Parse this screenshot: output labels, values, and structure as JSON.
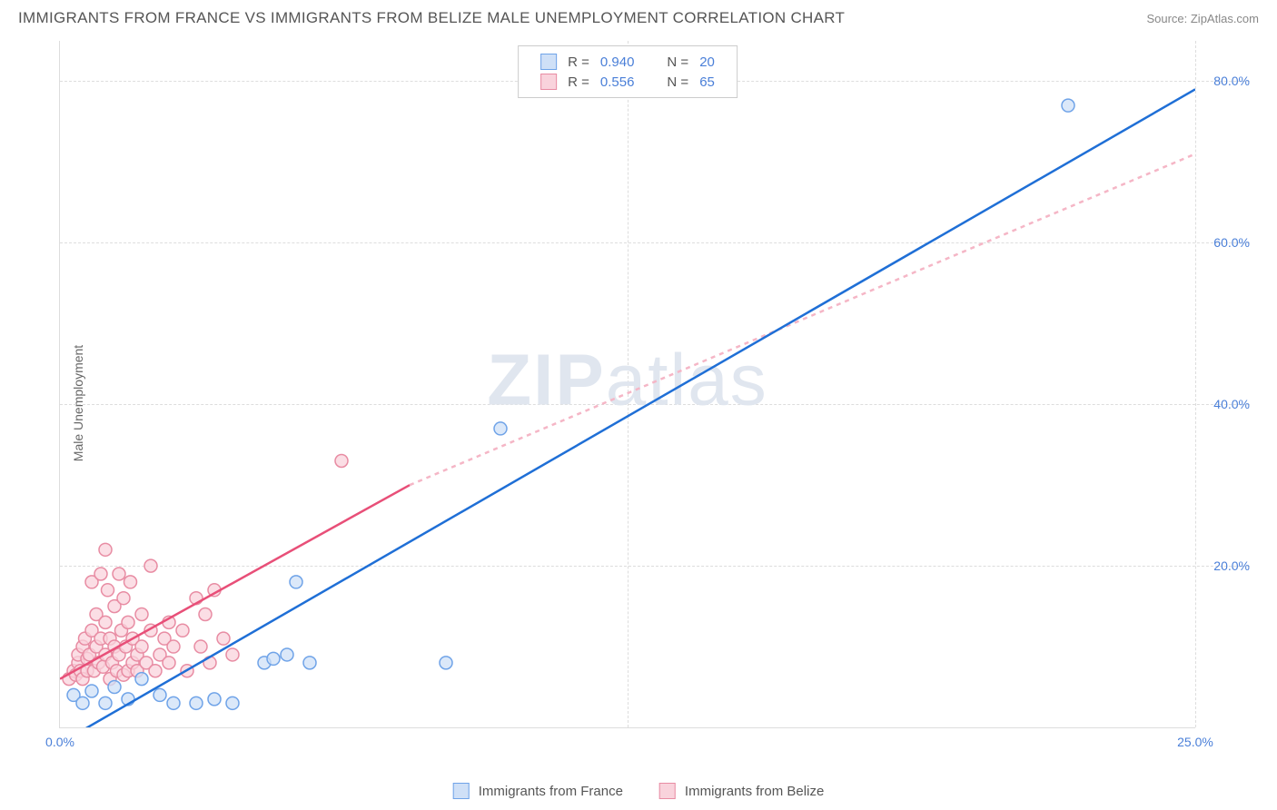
{
  "header": {
    "title": "IMMIGRANTS FROM FRANCE VS IMMIGRANTS FROM BELIZE MALE UNEMPLOYMENT CORRELATION CHART",
    "source_prefix": "Source: ",
    "source_name": "ZipAtlas.com"
  },
  "chart": {
    "type": "scatter",
    "ylabel": "Male Unemployment",
    "watermark_zip": "ZIP",
    "watermark_atlas": "atlas",
    "xlim": [
      0,
      25
    ],
    "ylim": [
      0,
      85
    ],
    "xtick_labels": [
      "0.0%",
      "25.0%"
    ],
    "xtick_positions": [
      0,
      25
    ],
    "xgrid_positions": [
      12.5,
      25
    ],
    "ytick_labels": [
      "20.0%",
      "40.0%",
      "60.0%",
      "80.0%"
    ],
    "ytick_positions": [
      20,
      40,
      60,
      80
    ],
    "background_color": "#ffffff",
    "grid_color": "#dddddd",
    "axis_label_color": "#4a7fd8",
    "marker_radius": 7,
    "marker_stroke_width": 1.5,
    "line_width": 2.5,
    "dash_pattern": "5,5",
    "series": {
      "france": {
        "label": "Immigrants from France",
        "fill": "#cfe0f7",
        "stroke": "#6fa3e8",
        "line_color": "#1f6fd6",
        "R": "0.940",
        "N": "20",
        "trend": {
          "x1": 0.3,
          "y1": -1,
          "x2": 25,
          "y2": 79
        },
        "points": [
          [
            0.3,
            4
          ],
          [
            0.5,
            3
          ],
          [
            0.7,
            4.5
          ],
          [
            1.0,
            3
          ],
          [
            1.2,
            5
          ],
          [
            1.5,
            3.5
          ],
          [
            1.8,
            6
          ],
          [
            2.2,
            4
          ],
          [
            2.5,
            3
          ],
          [
            3.0,
            3
          ],
          [
            3.4,
            3.5
          ],
          [
            3.8,
            3
          ],
          [
            4.5,
            8
          ],
          [
            4.7,
            8.5
          ],
          [
            5.0,
            9
          ],
          [
            5.2,
            18
          ],
          [
            5.5,
            8
          ],
          [
            8.5,
            8
          ],
          [
            9.7,
            37
          ],
          [
            22.2,
            77
          ]
        ]
      },
      "belize": {
        "label": "Immigrants from Belize",
        "fill": "#f9d3dc",
        "stroke": "#e88ca3",
        "line_color": "#e84f78",
        "dashed_color": "#f5b6c6",
        "R": "0.556",
        "N": "65",
        "trend": {
          "x1": 0,
          "y1": 6,
          "x2": 7.7,
          "y2": 30
        },
        "trend_dashed": {
          "x1": 7.7,
          "y1": 30,
          "x2": 25,
          "y2": 71
        },
        "points": [
          [
            0.2,
            6
          ],
          [
            0.3,
            7
          ],
          [
            0.35,
            6.5
          ],
          [
            0.4,
            8
          ],
          [
            0.4,
            9
          ],
          [
            0.45,
            7
          ],
          [
            0.5,
            6
          ],
          [
            0.5,
            10
          ],
          [
            0.55,
            11
          ],
          [
            0.6,
            7
          ],
          [
            0.6,
            8.5
          ],
          [
            0.65,
            9
          ],
          [
            0.7,
            12
          ],
          [
            0.7,
            18
          ],
          [
            0.75,
            7
          ],
          [
            0.8,
            10
          ],
          [
            0.8,
            14
          ],
          [
            0.85,
            8
          ],
          [
            0.9,
            11
          ],
          [
            0.9,
            19
          ],
          [
            0.95,
            7.5
          ],
          [
            1.0,
            9
          ],
          [
            1.0,
            13
          ],
          [
            1.0,
            22
          ],
          [
            1.05,
            17
          ],
          [
            1.1,
            6
          ],
          [
            1.1,
            11
          ],
          [
            1.15,
            8
          ],
          [
            1.2,
            10
          ],
          [
            1.2,
            15
          ],
          [
            1.25,
            7
          ],
          [
            1.3,
            19
          ],
          [
            1.3,
            9
          ],
          [
            1.35,
            12
          ],
          [
            1.4,
            6.5
          ],
          [
            1.4,
            16
          ],
          [
            1.45,
            10
          ],
          [
            1.5,
            7
          ],
          [
            1.5,
            13
          ],
          [
            1.55,
            18
          ],
          [
            1.6,
            8
          ],
          [
            1.6,
            11
          ],
          [
            1.7,
            9
          ],
          [
            1.7,
            7
          ],
          [
            1.8,
            14
          ],
          [
            1.8,
            10
          ],
          [
            1.9,
            8
          ],
          [
            2.0,
            20
          ],
          [
            2.0,
            12
          ],
          [
            2.1,
            7
          ],
          [
            2.2,
            9
          ],
          [
            2.3,
            11
          ],
          [
            2.4,
            8
          ],
          [
            2.4,
            13
          ],
          [
            2.5,
            10
          ],
          [
            2.7,
            12
          ],
          [
            2.8,
            7
          ],
          [
            3.0,
            16
          ],
          [
            3.1,
            10
          ],
          [
            3.2,
            14
          ],
          [
            3.3,
            8
          ],
          [
            3.4,
            17
          ],
          [
            3.6,
            11
          ],
          [
            3.8,
            9
          ],
          [
            6.2,
            33
          ]
        ]
      }
    },
    "stats_labels": {
      "R": "R =",
      "N": "N ="
    }
  }
}
